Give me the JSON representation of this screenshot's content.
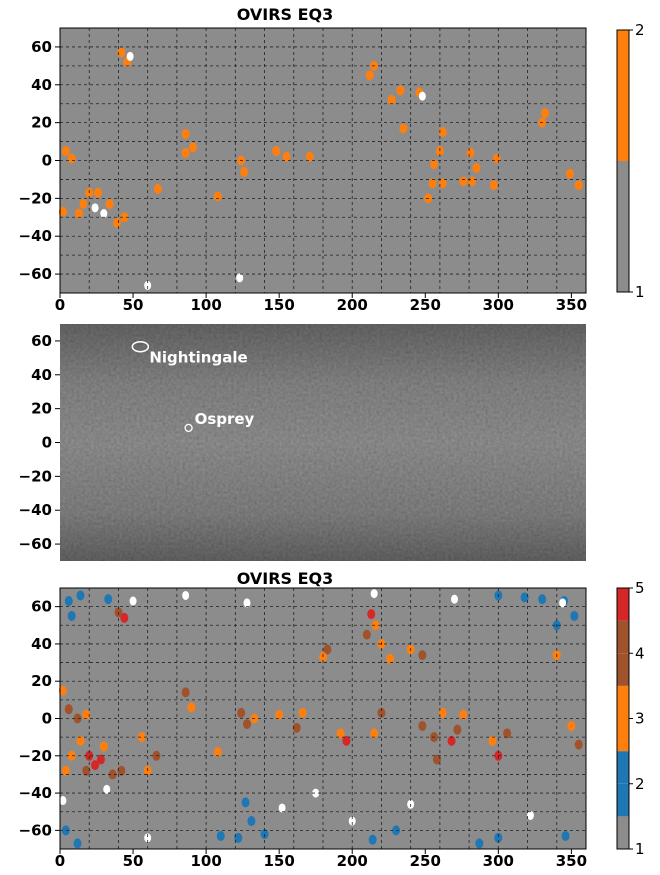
{
  "chart_data": [
    {
      "type": "heatmap",
      "title": "OVIRS EQ3",
      "xlim": [
        0,
        360
      ],
      "ylim": [
        -70,
        70
      ],
      "xticks": [
        0,
        50,
        100,
        150,
        200,
        250,
        300,
        350
      ],
      "yticks": [
        60,
        40,
        20,
        0,
        -20,
        -40,
        -60
      ],
      "grid": true,
      "colorbar": {
        "ticks": [
          1,
          2
        ],
        "levels": [
          {
            "value": 1,
            "color": "#8c8c8c"
          },
          {
            "value": 2,
            "color": "#ff7f0e"
          }
        ]
      },
      "background_value": 1,
      "cells": [
        {
          "lon": 42,
          "lat": 57,
          "value": 2
        },
        {
          "lon": 46,
          "lat": 52,
          "value": 2
        },
        {
          "lon": 215,
          "lat": 50,
          "value": 2
        },
        {
          "lon": 212,
          "lat": 45,
          "value": 2
        },
        {
          "lon": 233,
          "lat": 37,
          "value": 2
        },
        {
          "lon": 227,
          "lat": 32,
          "value": 2
        },
        {
          "lon": 246,
          "lat": 36,
          "value": 2
        },
        {
          "lon": 332,
          "lat": 25,
          "value": 2
        },
        {
          "lon": 330,
          "lat": 20,
          "value": 2
        },
        {
          "lon": 86,
          "lat": 14,
          "value": 2
        },
        {
          "lon": 91,
          "lat": 7,
          "value": 2
        },
        {
          "lon": 86,
          "lat": 4,
          "value": 2
        },
        {
          "lon": 4,
          "lat": 5,
          "value": 2
        },
        {
          "lon": 8,
          "lat": 1,
          "value": 2
        },
        {
          "lon": 124,
          "lat": 0,
          "value": 2
        },
        {
          "lon": 126,
          "lat": -6,
          "value": 2
        },
        {
          "lon": 148,
          "lat": 5,
          "value": 2
        },
        {
          "lon": 155,
          "lat": 2,
          "value": 2
        },
        {
          "lon": 171,
          "lat": 2,
          "value": 2
        },
        {
          "lon": 235,
          "lat": 17,
          "value": 2
        },
        {
          "lon": 262,
          "lat": 15,
          "value": 2
        },
        {
          "lon": 260,
          "lat": 5,
          "value": 2
        },
        {
          "lon": 256,
          "lat": -2,
          "value": 2
        },
        {
          "lon": 255,
          "lat": -12,
          "value": 2
        },
        {
          "lon": 262,
          "lat": -12,
          "value": 2
        },
        {
          "lon": 252,
          "lat": -20,
          "value": 2
        },
        {
          "lon": 281,
          "lat": 4,
          "value": 2
        },
        {
          "lon": 285,
          "lat": -4,
          "value": 2
        },
        {
          "lon": 276,
          "lat": -11,
          "value": 2
        },
        {
          "lon": 282,
          "lat": -11,
          "value": 2
        },
        {
          "lon": 299,
          "lat": 1,
          "value": 2
        },
        {
          "lon": 297,
          "lat": -13,
          "value": 2
        },
        {
          "lon": 349,
          "lat": -7,
          "value": 2
        },
        {
          "lon": 355,
          "lat": -13,
          "value": 2
        },
        {
          "lon": 20,
          "lat": -17,
          "value": 2
        },
        {
          "lon": 26,
          "lat": -17,
          "value": 2
        },
        {
          "lon": 16,
          "lat": -23,
          "value": 2
        },
        {
          "lon": 34,
          "lat": -23,
          "value": 2
        },
        {
          "lon": 13,
          "lat": -28,
          "value": 2
        },
        {
          "lon": 2,
          "lat": -27,
          "value": 2
        },
        {
          "lon": 39,
          "lat": -33,
          "value": 2
        },
        {
          "lon": 44,
          "lat": -30,
          "value": 2
        },
        {
          "lon": 67,
          "lat": -15,
          "value": 2
        },
        {
          "lon": 108,
          "lat": -19,
          "value": 2
        }
      ],
      "nodata_value_cells": [
        {
          "lon": 248,
          "lat": 34
        },
        {
          "lon": 24,
          "lat": -25
        },
        {
          "lon": 30,
          "lat": -28
        },
        {
          "lon": 48,
          "lat": 55
        },
        {
          "lon": 123,
          "lat": -62
        },
        {
          "lon": 60,
          "lat": -66
        }
      ]
    },
    {
      "type": "image",
      "ylim": [
        -70,
        70
      ],
      "yticks": [
        60,
        40,
        20,
        0,
        -20,
        -40,
        -60
      ],
      "annotations": [
        {
          "label": "Nightingale",
          "lon": 42,
          "lat": 56
        },
        {
          "label": "Osprey",
          "lon": 88,
          "lat": 11
        }
      ]
    },
    {
      "type": "heatmap",
      "title": "OVIRS EQ3",
      "xlim": [
        0,
        360
      ],
      "ylim": [
        -70,
        70
      ],
      "xticks": [
        0,
        50,
        100,
        150,
        200,
        250,
        300,
        350
      ],
      "yticks": [
        60,
        40,
        20,
        0,
        -20,
        -40,
        -60
      ],
      "grid": true,
      "colorbar": {
        "ticks": [
          1,
          2,
          3,
          4,
          5
        ],
        "levels": [
          {
            "value": 1,
            "color": "#8c8c8c"
          },
          {
            "value": 2,
            "color": "#1f77b4"
          },
          {
            "value": 3,
            "color": "#ff7f0e"
          },
          {
            "value": 4,
            "color": "#a0522d"
          },
          {
            "value": 5,
            "color": "#d62728"
          }
        ]
      },
      "background_value": 1,
      "cells": [
        {
          "lon": 6,
          "lat": 63,
          "value": 2
        },
        {
          "lon": 14,
          "lat": 66,
          "value": 2
        },
        {
          "lon": 33,
          "lat": 64,
          "value": 2
        },
        {
          "lon": 8,
          "lat": 55,
          "value": 2
        },
        {
          "lon": 318,
          "lat": 65,
          "value": 2
        },
        {
          "lon": 330,
          "lat": 64,
          "value": 2
        },
        {
          "lon": 345,
          "lat": 63,
          "value": 2
        },
        {
          "lon": 300,
          "lat": 66,
          "value": 2
        },
        {
          "lon": 352,
          "lat": 55,
          "value": 2
        },
        {
          "lon": 340,
          "lat": 50,
          "value": 2
        },
        {
          "lon": 127,
          "lat": -45,
          "value": 2
        },
        {
          "lon": 131,
          "lat": -55,
          "value": 2
        },
        {
          "lon": 140,
          "lat": -62,
          "value": 2
        },
        {
          "lon": 122,
          "lat": -64,
          "value": 2
        },
        {
          "lon": 110,
          "lat": -63,
          "value": 2
        },
        {
          "lon": 12,
          "lat": -67,
          "value": 2
        },
        {
          "lon": 4,
          "lat": -60,
          "value": 2
        },
        {
          "lon": 300,
          "lat": -64,
          "value": 2
        },
        {
          "lon": 287,
          "lat": -67,
          "value": 2
        },
        {
          "lon": 346,
          "lat": -63,
          "value": 2
        },
        {
          "lon": 230,
          "lat": -60,
          "value": 2
        },
        {
          "lon": 214,
          "lat": -65,
          "value": 2
        },
        {
          "lon": 40,
          "lat": 57,
          "value": 4
        },
        {
          "lon": 44,
          "lat": 54,
          "value": 5
        },
        {
          "lon": 213,
          "lat": 56,
          "value": 5
        },
        {
          "lon": 216,
          "lat": 50,
          "value": 3
        },
        {
          "lon": 210,
          "lat": 45,
          "value": 4
        },
        {
          "lon": 248,
          "lat": 34,
          "value": 4
        },
        {
          "lon": 240,
          "lat": 37,
          "value": 3
        },
        {
          "lon": 226,
          "lat": 32,
          "value": 3
        },
        {
          "lon": 183,
          "lat": 37,
          "value": 4
        },
        {
          "lon": 180,
          "lat": 33,
          "value": 3
        },
        {
          "lon": 340,
          "lat": 34,
          "value": 3
        },
        {
          "lon": 220,
          "lat": 40,
          "value": 3
        },
        {
          "lon": 2,
          "lat": 15,
          "value": 3
        },
        {
          "lon": 6,
          "lat": 5,
          "value": 4
        },
        {
          "lon": 12,
          "lat": 0,
          "value": 4
        },
        {
          "lon": 18,
          "lat": 2,
          "value": 3
        },
        {
          "lon": 86,
          "lat": 14,
          "value": 4
        },
        {
          "lon": 90,
          "lat": 6,
          "value": 3
        },
        {
          "lon": 124,
          "lat": 3,
          "value": 4
        },
        {
          "lon": 128,
          "lat": -3,
          "value": 4
        },
        {
          "lon": 133,
          "lat": 0,
          "value": 3
        },
        {
          "lon": 150,
          "lat": 2,
          "value": 3
        },
        {
          "lon": 162,
          "lat": -5,
          "value": 4
        },
        {
          "lon": 166,
          "lat": 3,
          "value": 3
        },
        {
          "lon": 196,
          "lat": -12,
          "value": 5
        },
        {
          "lon": 192,
          "lat": -8,
          "value": 3
        },
        {
          "lon": 220,
          "lat": 3,
          "value": 4
        },
        {
          "lon": 215,
          "lat": -8,
          "value": 3
        },
        {
          "lon": 248,
          "lat": -4,
          "value": 4
        },
        {
          "lon": 256,
          "lat": -10,
          "value": 4
        },
        {
          "lon": 262,
          "lat": 3,
          "value": 3
        },
        {
          "lon": 268,
          "lat": -12,
          "value": 5
        },
        {
          "lon": 272,
          "lat": -6,
          "value": 4
        },
        {
          "lon": 258,
          "lat": -22,
          "value": 4
        },
        {
          "lon": 276,
          "lat": 2,
          "value": 3
        },
        {
          "lon": 300,
          "lat": -20,
          "value": 5
        },
        {
          "lon": 296,
          "lat": -12,
          "value": 3
        },
        {
          "lon": 306,
          "lat": -8,
          "value": 4
        },
        {
          "lon": 350,
          "lat": -4,
          "value": 3
        },
        {
          "lon": 355,
          "lat": -14,
          "value": 4
        },
        {
          "lon": 14,
          "lat": -12,
          "value": 3
        },
        {
          "lon": 20,
          "lat": -20,
          "value": 5
        },
        {
          "lon": 24,
          "lat": -25,
          "value": 5
        },
        {
          "lon": 28,
          "lat": -22,
          "value": 5
        },
        {
          "lon": 18,
          "lat": -28,
          "value": 4
        },
        {
          "lon": 8,
          "lat": -20,
          "value": 3
        },
        {
          "lon": 4,
          "lat": -28,
          "value": 3
        },
        {
          "lon": 30,
          "lat": -15,
          "value": 3
        },
        {
          "lon": 36,
          "lat": -30,
          "value": 4
        },
        {
          "lon": 42,
          "lat": -28,
          "value": 4
        },
        {
          "lon": 60,
          "lat": -28,
          "value": 3
        },
        {
          "lon": 66,
          "lat": -20,
          "value": 4
        },
        {
          "lon": 56,
          "lat": -10,
          "value": 3
        },
        {
          "lon": 108,
          "lat": -18,
          "value": 3
        }
      ],
      "nodata_value_cells": [
        {
          "lon": 50,
          "lat": 63
        },
        {
          "lon": 86,
          "lat": 66
        },
        {
          "lon": 128,
          "lat": 62
        },
        {
          "lon": 215,
          "lat": 67
        },
        {
          "lon": 270,
          "lat": 64
        },
        {
          "lon": 344,
          "lat": 62
        },
        {
          "lon": 60,
          "lat": -64
        },
        {
          "lon": 152,
          "lat": -48
        },
        {
          "lon": 175,
          "lat": -40
        },
        {
          "lon": 200,
          "lat": -55
        },
        {
          "lon": 240,
          "lat": -46
        },
        {
          "lon": 322,
          "lat": -52
        },
        {
          "lon": 32,
          "lat": -38
        },
        {
          "lon": 2,
          "lat": -44
        }
      ]
    }
  ]
}
